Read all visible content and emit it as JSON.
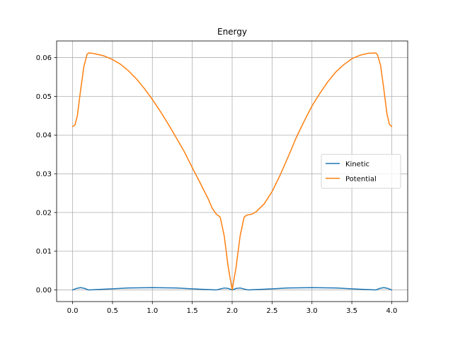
{
  "chart_data": {
    "type": "line",
    "title": "Energy",
    "xlabel": "",
    "ylabel": "",
    "xlim": [
      -0.2,
      4.2
    ],
    "ylim": [
      -0.003,
      0.0643
    ],
    "xticks": [
      0.0,
      0.5,
      1.0,
      1.5,
      2.0,
      2.5,
      3.0,
      3.5,
      4.0
    ],
    "xtick_labels": [
      "0.0",
      "0.5",
      "1.0",
      "1.5",
      "2.0",
      "2.5",
      "3.0",
      "3.5",
      "4.0"
    ],
    "yticks": [
      0.0,
      0.01,
      0.02,
      0.03,
      0.04,
      0.05,
      0.06
    ],
    "ytick_labels": [
      "0.00",
      "0.01",
      "0.02",
      "0.03",
      "0.04",
      "0.05",
      "0.06"
    ],
    "grid": true,
    "legend_position": "center-right",
    "series": [
      {
        "name": "Kinetic",
        "color": "#1f77b4",
        "x": [
          0.0,
          0.05,
          0.1,
          0.15,
          0.2,
          0.3,
          0.5,
          0.7,
          1.0,
          1.3,
          1.6,
          1.8,
          1.9,
          1.95,
          2.0,
          2.05,
          2.1,
          2.2,
          2.4,
          2.7,
          3.0,
          3.3,
          3.6,
          3.8,
          3.85,
          3.9,
          3.95,
          4.0
        ],
        "y": [
          0.0,
          0.0004,
          0.0006,
          0.0004,
          0.0,
          0.0001,
          0.0003,
          0.0005,
          0.0006,
          0.0005,
          0.0002,
          0.0,
          0.0005,
          0.0004,
          0.0,
          0.0004,
          0.0005,
          0.0,
          0.0002,
          0.0005,
          0.0006,
          0.0005,
          0.0002,
          0.0,
          0.0004,
          0.0006,
          0.0004,
          0.0
        ]
      },
      {
        "name": "Potential",
        "color": "#ff7f0e",
        "x": [
          0.0,
          0.03,
          0.06,
          0.1,
          0.14,
          0.18,
          0.2,
          0.25,
          0.3,
          0.4,
          0.5,
          0.6,
          0.7,
          0.8,
          0.9,
          1.0,
          1.1,
          1.2,
          1.3,
          1.4,
          1.5,
          1.6,
          1.7,
          1.75,
          1.8,
          1.82,
          1.85,
          1.9,
          1.95,
          2.0,
          2.05,
          2.1,
          2.15,
          2.18,
          2.2,
          2.25,
          2.3,
          2.4,
          2.5,
          2.6,
          2.7,
          2.8,
          2.9,
          3.0,
          3.1,
          3.2,
          3.3,
          3.4,
          3.5,
          3.6,
          3.7,
          3.8,
          3.82,
          3.86,
          3.9,
          3.94,
          3.97,
          4.0
        ],
        "y": [
          0.0422,
          0.0426,
          0.045,
          0.0515,
          0.0575,
          0.0608,
          0.0612,
          0.0611,
          0.0609,
          0.0604,
          0.0595,
          0.0583,
          0.0566,
          0.0545,
          0.052,
          0.0492,
          0.0461,
          0.0428,
          0.0393,
          0.0357,
          0.0316,
          0.0276,
          0.0235,
          0.0211,
          0.0196,
          0.0193,
          0.0188,
          0.014,
          0.006,
          0.0,
          0.006,
          0.014,
          0.0188,
          0.0193,
          0.0194,
          0.0196,
          0.0202,
          0.0222,
          0.0254,
          0.0296,
          0.0343,
          0.0392,
          0.0435,
          0.0475,
          0.0508,
          0.0538,
          0.0563,
          0.0582,
          0.0597,
          0.0606,
          0.0611,
          0.0612,
          0.0608,
          0.058,
          0.052,
          0.0455,
          0.0428,
          0.0422
        ]
      }
    ]
  }
}
